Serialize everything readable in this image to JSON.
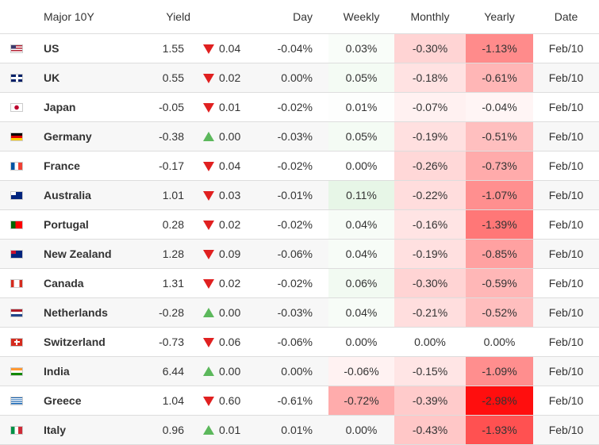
{
  "table": {
    "header": [
      "Major 10Y",
      "Yield",
      "Day",
      "Weekly",
      "Monthly",
      "Yearly",
      "Date"
    ],
    "rows": [
      {
        "name": "US",
        "yield": "1.55",
        "direction": "down",
        "change": "0.04",
        "day": "-0.04%",
        "weekly": "0.03%",
        "monthly": "-0.30%",
        "yearly": "-1.13%",
        "date": "Feb/10"
      },
      {
        "name": "UK",
        "yield": "0.55",
        "direction": "down",
        "change": "0.02",
        "day": "0.00%",
        "weekly": "0.05%",
        "monthly": "-0.18%",
        "yearly": "-0.61%",
        "date": "Feb/10"
      },
      {
        "name": "Japan",
        "yield": "-0.05",
        "direction": "down",
        "change": "0.01",
        "day": "-0.02%",
        "weekly": "0.01%",
        "monthly": "-0.07%",
        "yearly": "-0.04%",
        "date": "Feb/10"
      },
      {
        "name": "Germany",
        "yield": "-0.38",
        "direction": "up",
        "change": "0.00",
        "day": "-0.03%",
        "weekly": "0.05%",
        "monthly": "-0.19%",
        "yearly": "-0.51%",
        "date": "Feb/10"
      },
      {
        "name": "France",
        "yield": "-0.17",
        "direction": "down",
        "change": "0.04",
        "day": "-0.02%",
        "weekly": "0.00%",
        "monthly": "-0.26%",
        "yearly": "-0.73%",
        "date": "Feb/10"
      },
      {
        "name": "Australia",
        "yield": "1.01",
        "direction": "down",
        "change": "0.03",
        "day": "-0.01%",
        "weekly": "0.11%",
        "monthly": "-0.22%",
        "yearly": "-1.07%",
        "date": "Feb/10"
      },
      {
        "name": "Portugal",
        "yield": "0.28",
        "direction": "down",
        "change": "0.02",
        "day": "-0.02%",
        "weekly": "0.04%",
        "monthly": "-0.16%",
        "yearly": "-1.39%",
        "date": "Feb/10"
      },
      {
        "name": "New Zealand",
        "yield": "1.28",
        "direction": "down",
        "change": "0.09",
        "day": "-0.06%",
        "weekly": "0.04%",
        "monthly": "-0.19%",
        "yearly": "-0.85%",
        "date": "Feb/10"
      },
      {
        "name": "Canada",
        "yield": "1.31",
        "direction": "down",
        "change": "0.02",
        "day": "-0.02%",
        "weekly": "0.06%",
        "monthly": "-0.30%",
        "yearly": "-0.59%",
        "date": "Feb/10"
      },
      {
        "name": "Netherlands",
        "yield": "-0.28",
        "direction": "up",
        "change": "0.00",
        "day": "-0.03%",
        "weekly": "0.04%",
        "monthly": "-0.21%",
        "yearly": "-0.52%",
        "date": "Feb/10"
      },
      {
        "name": "Switzerland",
        "yield": "-0.73",
        "direction": "down",
        "change": "0.06",
        "day": "-0.06%",
        "weekly": "0.00%",
        "monthly": "0.00%",
        "yearly": "0.00%",
        "date": "Feb/10"
      },
      {
        "name": "India",
        "yield": "6.44",
        "direction": "up",
        "change": "0.00",
        "day": "0.00%",
        "weekly": "-0.06%",
        "monthly": "-0.15%",
        "yearly": "-1.09%",
        "date": "Feb/10"
      },
      {
        "name": "Greece",
        "yield": "1.04",
        "direction": "down",
        "change": "0.60",
        "day": "-0.61%",
        "weekly": "-0.72%",
        "monthly": "-0.39%",
        "yearly": "-2.98%",
        "date": "Feb/10"
      },
      {
        "name": "Italy",
        "yield": "0.96",
        "direction": "up",
        "change": "0.01",
        "day": "0.01%",
        "weekly": "0.00%",
        "monthly": "-0.43%",
        "yearly": "-1.93%",
        "date": "Feb/10"
      }
    ]
  }
}
